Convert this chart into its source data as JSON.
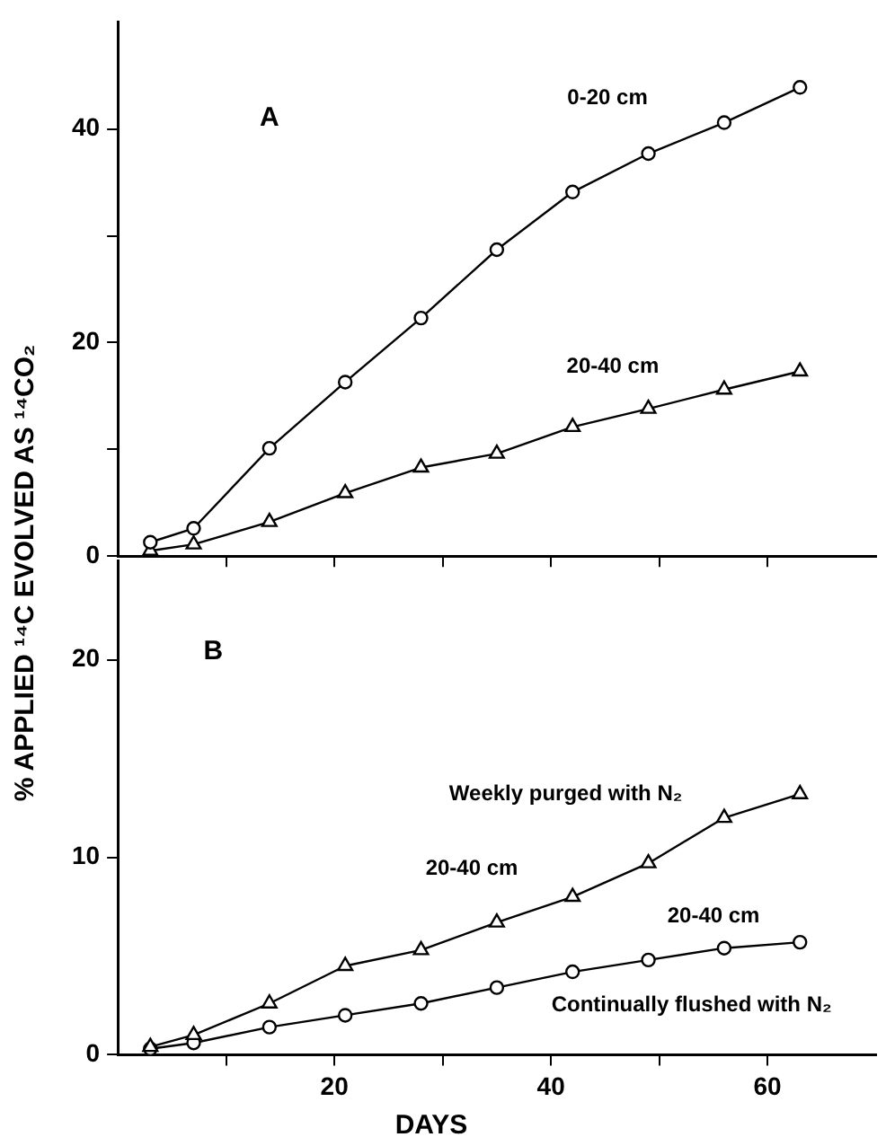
{
  "chart_data": [
    {
      "type": "line",
      "ylabel": "% APPLIED ¹⁴C EVOLVED AS ¹⁴CO₂",
      "x": [
        3,
        7,
        14,
        21,
        28,
        35,
        42,
        49,
        56,
        63
      ],
      "xlim": [
        0,
        70
      ],
      "xticks": [
        {
          "value": 10,
          "label": null
        },
        20,
        {
          "value": 30,
          "label": null
        },
        40,
        {
          "value": 50,
          "label": null
        },
        60
      ],
      "ylim": [
        0,
        50
      ],
      "yticks": [
        0,
        {
          "value": 10,
          "label": null
        },
        20,
        {
          "value": 30,
          "label": null
        },
        40
      ],
      "tick_labels": "y",
      "grid": false,
      "legend": false,
      "line_style": "solid",
      "series": [
        {
          "color": "#000000",
          "marker": "circle",
          "values": [
            1.3,
            2.6,
            10.1,
            16.3,
            22.3,
            28.7,
            34.1,
            37.7,
            40.6,
            43.9
          ]
        },
        {
          "color": "#000000",
          "marker": "triangle",
          "values": [
            0.5,
            1.1,
            3.2,
            5.9,
            8.3,
            9.6,
            12.1,
            13.8,
            15.6,
            17.3
          ]
        }
      ],
      "annotations": [
        "A",
        "0-20 cm",
        "20-40 cm"
      ]
    },
    {
      "type": "line",
      "xlabel": "DAYS",
      "x": [
        3,
        7,
        14,
        21,
        28,
        35,
        42,
        49,
        56,
        63
      ],
      "xlim": [
        0,
        70
      ],
      "xticks": [
        {
          "value": 10,
          "label": null
        },
        20,
        {
          "value": 30,
          "label": null
        },
        40,
        {
          "value": 50,
          "label": null
        },
        60
      ],
      "ylim": [
        0,
        25
      ],
      "yticks": [
        0,
        10,
        20
      ],
      "grid": false,
      "legend": false,
      "line_style": "solid",
      "series": [
        {
          "color": "#000000",
          "marker": "triangle",
          "values": [
            0.4,
            1.0,
            2.6,
            4.5,
            5.3,
            6.7,
            8.0,
            9.7,
            12.0,
            13.2
          ]
        },
        {
          "color": "#000000",
          "marker": "circle",
          "values": [
            0.3,
            0.6,
            1.4,
            2.0,
            2.6,
            3.4,
            4.2,
            4.8,
            5.4,
            5.7
          ]
        }
      ],
      "annotations": [
        "B",
        "Weekly purged with N₂",
        "20-40 cm",
        "20-40 cm",
        "Continually flushed with N₂"
      ]
    }
  ]
}
